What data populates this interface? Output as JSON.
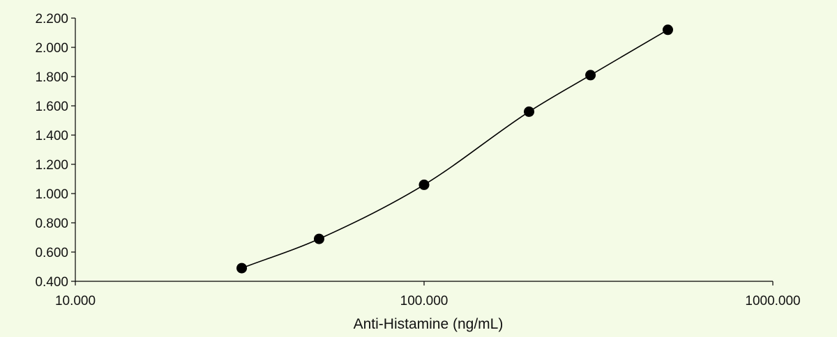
{
  "chart_data": {
    "type": "scatter",
    "title": "",
    "xlabel": "Anti-Histamine (ng/mL)",
    "ylabel": "",
    "x_scale": "log",
    "xlim": [
      10,
      1000
    ],
    "ylim": [
      0.4,
      2.2
    ],
    "x_ticks": [
      {
        "value": 10,
        "label": "10.000"
      },
      {
        "value": 100,
        "label": "100.000"
      },
      {
        "value": 1000,
        "label": "1000.000"
      }
    ],
    "y_ticks": [
      {
        "value": 0.4,
        "label": "0.400"
      },
      {
        "value": 0.6,
        "label": "0.600"
      },
      {
        "value": 0.8,
        "label": "0.800"
      },
      {
        "value": 1.0,
        "label": "1.000"
      },
      {
        "value": 1.2,
        "label": "1.200"
      },
      {
        "value": 1.4,
        "label": "1.400"
      },
      {
        "value": 1.6,
        "label": "1.600"
      },
      {
        "value": 1.8,
        "label": "1.800"
      },
      {
        "value": 2.0,
        "label": "2.000"
      },
      {
        "value": 2.2,
        "label": "2.200"
      }
    ],
    "series": [
      {
        "x": [
          30,
          50,
          100,
          200,
          300,
          500
        ],
        "y": [
          0.49,
          0.69,
          1.06,
          1.56,
          1.81,
          2.12
        ],
        "marker": "filled-circle",
        "fit_curve": true
      }
    ],
    "grid": false,
    "colors": {
      "background": "#f4fbe6",
      "marker": "#000000",
      "line": "#000000"
    }
  }
}
